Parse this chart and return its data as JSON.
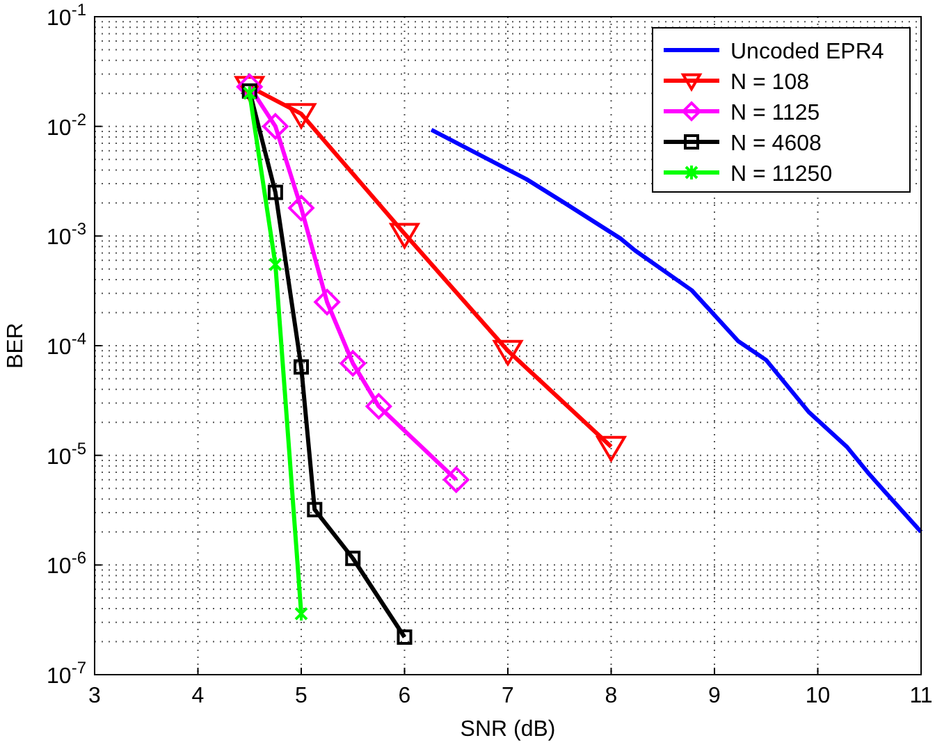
{
  "chart_data": {
    "type": "line",
    "xlabel": "SNR (dB)",
    "ylabel": "BER",
    "log": "y",
    "xlim": [
      3,
      11
    ],
    "xticks": [
      3,
      4,
      5,
      6,
      7,
      8,
      9,
      10,
      11
    ],
    "ylim": [
      1e-07,
      0.1
    ],
    "yticks": [
      {
        "value": 1e-07,
        "label": "10$^{-7}$"
      },
      {
        "value": 1e-06,
        "label": "10$^{-6}$"
      },
      {
        "value": 1e-05,
        "label": "10$^{-5}$"
      },
      {
        "value": 0.0001,
        "label": "10$^{-4}$"
      },
      {
        "value": 0.001,
        "label": "10$^{-3}$"
      },
      {
        "value": 0.01,
        "label": "10$^{-2}$"
      },
      {
        "value": 0.1,
        "label": "10$^{-1}$"
      }
    ],
    "grid": true,
    "legend": "top right",
    "series": [
      {
        "name": "Uncoded EPR4",
        "color": "#0000ff",
        "marker": "none",
        "x": [
          6.26,
          7.18,
          7.55,
          8.09,
          8.23,
          8.78,
          9.23,
          9.5,
          9.91,
          10.28,
          10.5,
          11
        ],
        "values": [
          0.0093,
          0.0033,
          0.002,
          0.00095,
          0.00074,
          0.00032,
          0.00011,
          7.4e-05,
          2.5e-05,
          1.2e-05,
          6.7e-06,
          2e-06
        ]
      },
      {
        "name": "N = 108",
        "color": "#ff0000",
        "marker": "triangle",
        "x": [
          4.5,
          5,
          6,
          7,
          8
        ],
        "values": [
          0.023,
          0.013,
          0.00105,
          9e-05,
          1.2e-05
        ]
      },
      {
        "name": "N = 1125",
        "color": "#ff00ff",
        "marker": "diamond",
        "x": [
          4.5,
          4.75,
          5,
          5.25,
          5.5,
          5.75,
          6.5
        ],
        "values": [
          0.023,
          0.01,
          0.0018,
          0.00025,
          6.9e-05,
          2.8e-05,
          6e-06
        ]
      },
      {
        "name": "N = 4608",
        "color": "#000000",
        "marker": "square",
        "x": [
          4.5,
          4.75,
          5,
          5.13,
          5.5,
          6
        ],
        "values": [
          0.021,
          0.0025,
          6.4e-05,
          3.2e-06,
          1.15e-06,
          2.2e-07
        ]
      },
      {
        "name": "N = 11250",
        "color": "#00ff00",
        "marker": "cross",
        "x": [
          4.5,
          4.75,
          5
        ],
        "values": [
          0.02,
          0.00055,
          3.6e-07
        ]
      }
    ]
  }
}
